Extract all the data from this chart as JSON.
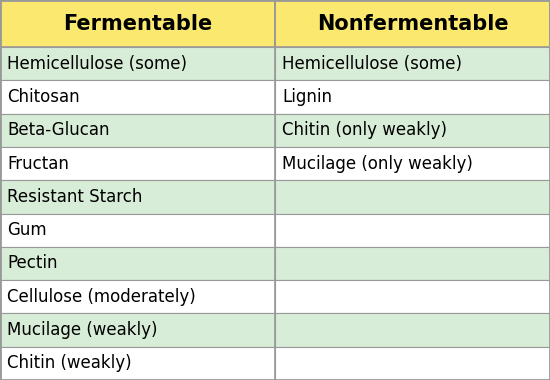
{
  "header": [
    "Fermentable",
    "Nonfermentable"
  ],
  "fermentable": [
    "Hemicellulose (some)",
    "Chitosan",
    "Beta-Glucan",
    "Fructan",
    "Resistant Starch",
    "Gum",
    "Pectin",
    "Cellulose (moderately)",
    "Mucilage (weakly)",
    "Chitin (weakly)"
  ],
  "nonfermentable": [
    "Hemicellulose (some)",
    "Lignin",
    "Chitin (only weakly)",
    "Mucilage (only weakly)",
    "",
    "",
    "",
    "",
    "",
    ""
  ],
  "header_bg": "#FAE96E",
  "row_bg_odd": "#D8EDD8",
  "row_bg_even": "#FFFFFF",
  "border_color": "#999999",
  "text_color": "#000000",
  "header_fontsize": 15,
  "cell_fontsize": 12,
  "fig_width": 5.5,
  "fig_height": 3.8,
  "dpi": 100
}
